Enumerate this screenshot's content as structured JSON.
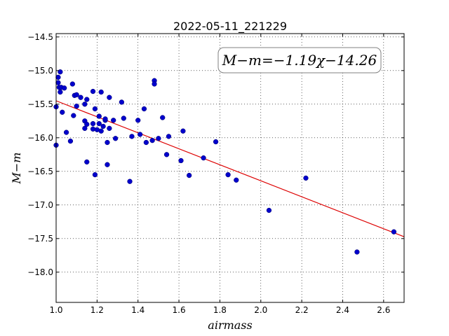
{
  "chart_data": {
    "type": "scatter",
    "title": "2022-05-11_221229",
    "xlabel": "airmass",
    "ylabel": "M−m",
    "xlim": [
      1.0,
      2.7
    ],
    "ylim": [
      -14.45,
      -18.45
    ],
    "x_ticks": [
      1.0,
      1.2,
      1.4,
      1.6,
      1.8,
      2.0,
      2.2,
      2.4,
      2.6
    ],
    "x_tick_labels": [
      "1.0",
      "1.2",
      "1.4",
      "1.6",
      "1.8",
      "2.0",
      "2.2",
      "2.4",
      "2.6"
    ],
    "y_ticks": [
      -14.5,
      -15.0,
      -15.5,
      -16.0,
      -16.5,
      -17.0,
      -17.5,
      -18.0
    ],
    "y_tick_labels": [
      "−14.5",
      "−15.0",
      "−15.5",
      "−16.0",
      "−16.5",
      "−17.0",
      "−17.5",
      "−18.0"
    ],
    "grid": true,
    "point_color": "#0000cc",
    "fit_color": "#dd0000",
    "annotation": "M−m=−1.19χ−14.26",
    "fit": {
      "slope": -1.19,
      "intercept": -14.26
    },
    "points": [
      [
        1.0,
        -15.54
      ],
      [
        1.0,
        -16.11
      ],
      [
        1.01,
        -15.1
      ],
      [
        1.01,
        -15.18
      ],
      [
        1.015,
        -15.25
      ],
      [
        1.02,
        -15.02
      ],
      [
        1.02,
        -15.32
      ],
      [
        1.025,
        -15.25
      ],
      [
        1.03,
        -15.62
      ],
      [
        1.04,
        -15.26
      ],
      [
        1.05,
        -15.92
      ],
      [
        1.07,
        -16.05
      ],
      [
        1.08,
        -15.2
      ],
      [
        1.085,
        -15.67
      ],
      [
        1.09,
        -15.37
      ],
      [
        1.1,
        -15.36
      ],
      [
        1.1,
        -15.53
      ],
      [
        1.12,
        -15.4
      ],
      [
        1.14,
        -15.5
      ],
      [
        1.14,
        -15.75
      ],
      [
        1.14,
        -15.86
      ],
      [
        1.15,
        -15.43
      ],
      [
        1.15,
        -15.8
      ],
      [
        1.15,
        -16.36
      ],
      [
        1.18,
        -15.31
      ],
      [
        1.18,
        -15.79
      ],
      [
        1.18,
        -15.87
      ],
      [
        1.19,
        -15.57
      ],
      [
        1.19,
        -16.55
      ],
      [
        1.2,
        -15.88
      ],
      [
        1.21,
        -15.79
      ],
      [
        1.21,
        -15.68
      ],
      [
        1.22,
        -15.32
      ],
      [
        1.22,
        -15.9
      ],
      [
        1.23,
        -15.83
      ],
      [
        1.24,
        -15.74
      ],
      [
        1.24,
        -15.72
      ],
      [
        1.25,
        -16.4
      ],
      [
        1.25,
        -16.07
      ],
      [
        1.26,
        -15.4
      ],
      [
        1.26,
        -15.86
      ],
      [
        1.28,
        -15.74
      ],
      [
        1.29,
        -16.01
      ],
      [
        1.32,
        -15.47
      ],
      [
        1.33,
        -15.71
      ],
      [
        1.36,
        -16.65
      ],
      [
        1.37,
        -15.98
      ],
      [
        1.4,
        -15.74
      ],
      [
        1.41,
        -15.95
      ],
      [
        1.43,
        -15.57
      ],
      [
        1.44,
        -16.07
      ],
      [
        1.47,
        -16.04
      ],
      [
        1.48,
        -15.15
      ],
      [
        1.48,
        -15.2
      ],
      [
        1.5,
        -16.01
      ],
      [
        1.52,
        -15.7
      ],
      [
        1.54,
        -16.25
      ],
      [
        1.55,
        -15.98
      ],
      [
        1.61,
        -16.34
      ],
      [
        1.62,
        -15.9
      ],
      [
        1.65,
        -16.56
      ],
      [
        1.72,
        -16.3
      ],
      [
        1.78,
        -16.06
      ],
      [
        1.84,
        -16.55
      ],
      [
        1.88,
        -16.63
      ],
      [
        2.04,
        -17.08
      ],
      [
        2.22,
        -16.6
      ],
      [
        2.47,
        -17.7
      ],
      [
        2.65,
        -17.4
      ]
    ]
  }
}
